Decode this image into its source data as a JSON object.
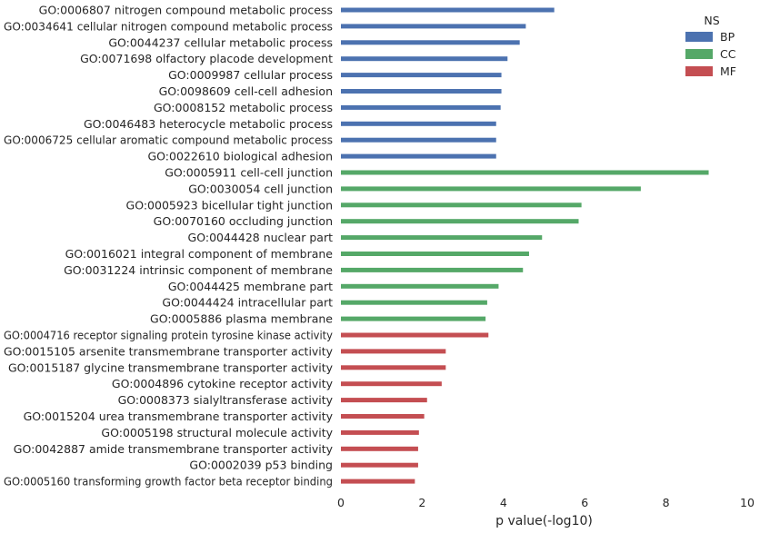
{
  "chart_data": {
    "type": "bar",
    "orientation": "horizontal",
    "xlabel": "p value(-log10)",
    "xlim": [
      0,
      10
    ],
    "xticks": [
      "0",
      "2",
      "4",
      "6",
      "8",
      "10"
    ],
    "grid": false,
    "legend": {
      "title": "NS",
      "placement": "top-right",
      "entries": [
        {
          "name": "BP",
          "color": "#4c72b0"
        },
        {
          "name": "CC",
          "color": "#55a868"
        },
        {
          "name": "MF",
          "color": "#c44e52"
        }
      ]
    },
    "bars": [
      {
        "label": "GO:0006807 nitrogen compound metabolic process",
        "value": 5.25,
        "ns": "BP"
      },
      {
        "label": "GO:0034641 cellular nitrogen compound metabolic process",
        "value": 4.55,
        "ns": "BP"
      },
      {
        "label": "GO:0044237 cellular metabolic process",
        "value": 4.4,
        "ns": "BP"
      },
      {
        "label": "GO:0071698 olfactory placode development",
        "value": 4.1,
        "ns": "BP"
      },
      {
        "label": "GO:0009987 cellular process",
        "value": 3.95,
        "ns": "BP"
      },
      {
        "label": "GO:0098609 cell-cell adhesion",
        "value": 3.95,
        "ns": "BP"
      },
      {
        "label": "GO:0008152 metabolic process",
        "value": 3.93,
        "ns": "BP"
      },
      {
        "label": "GO:0046483 heterocycle metabolic process",
        "value": 3.82,
        "ns": "BP"
      },
      {
        "label": "GO:0006725 cellular aromatic compound metabolic process",
        "value": 3.82,
        "ns": "BP"
      },
      {
        "label": "GO:0022610 biological adhesion",
        "value": 3.82,
        "ns": "BP"
      },
      {
        "label": "GO:0005911 cell-cell junction",
        "value": 9.05,
        "ns": "CC"
      },
      {
        "label": "GO:0030054 cell junction",
        "value": 7.38,
        "ns": "CC"
      },
      {
        "label": "GO:0005923 bicellular tight junction",
        "value": 5.92,
        "ns": "CC"
      },
      {
        "label": "GO:0070160 occluding junction",
        "value": 5.85,
        "ns": "CC"
      },
      {
        "label": "GO:0044428 nuclear part",
        "value": 4.95,
        "ns": "CC"
      },
      {
        "label": "GO:0016021 integral component of membrane",
        "value": 4.63,
        "ns": "CC"
      },
      {
        "label": "GO:0031224 intrinsic component of membrane",
        "value": 4.48,
        "ns": "CC"
      },
      {
        "label": "GO:0044425 membrane part",
        "value": 3.88,
        "ns": "CC"
      },
      {
        "label": "GO:0044424 intracellular part",
        "value": 3.6,
        "ns": "CC"
      },
      {
        "label": "GO:0005886 plasma membrane",
        "value": 3.56,
        "ns": "CC"
      },
      {
        "label": "GO:0004716 receptor signaling protein tyrosine kinase activity",
        "value": 3.63,
        "ns": "MF"
      },
      {
        "label": "GO:0015105 arsenite transmembrane transporter activity",
        "value": 2.58,
        "ns": "MF"
      },
      {
        "label": "GO:0015187 glycine transmembrane transporter activity",
        "value": 2.58,
        "ns": "MF"
      },
      {
        "label": "GO:0004896 cytokine receptor activity",
        "value": 2.48,
        "ns": "MF"
      },
      {
        "label": "GO:0008373 sialyltransferase activity",
        "value": 2.12,
        "ns": "MF"
      },
      {
        "label": "GO:0015204 urea transmembrane transporter activity",
        "value": 2.05,
        "ns": "MF"
      },
      {
        "label": "GO:0005198 structural molecule activity",
        "value": 1.92,
        "ns": "MF"
      },
      {
        "label": "GO:0042887 amide transmembrane transporter activity",
        "value": 1.9,
        "ns": "MF"
      },
      {
        "label": "GO:0002039 p53 binding",
        "value": 1.9,
        "ns": "MF"
      },
      {
        "label": "GO:0005160 transforming growth factor beta receptor binding",
        "value": 1.82,
        "ns": "MF"
      }
    ]
  }
}
